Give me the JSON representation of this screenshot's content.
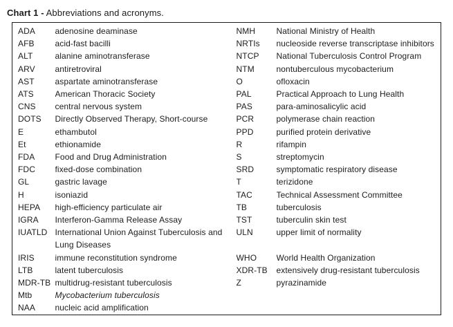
{
  "title": {
    "label": "Chart 1 -",
    "caption": "Abbreviations and acronyms."
  },
  "table": {
    "rows": [
      {
        "a1": "ADA",
        "d1": "adenosine deaminase",
        "a2": "NMH",
        "d2": "National Ministry of Health"
      },
      {
        "a1": "AFB",
        "d1": "acid-fast bacilli",
        "a2": "NRTIs",
        "d2": "nucleoside reverse transcriptase inhibitors"
      },
      {
        "a1": "ALT",
        "d1": "alanine aminotransferase",
        "a2": "NTCP",
        "d2": "National Tuberculosis Control Program"
      },
      {
        "a1": "ARV",
        "d1": "antiretroviral",
        "a2": "NTM",
        "d2": "nontuberculous mycobacterium"
      },
      {
        "a1": "AST",
        "d1": "aspartate aminotransferase",
        "a2": "O",
        "d2": "ofloxacin"
      },
      {
        "a1": "ATS",
        "d1": "American Thoracic Society",
        "a2": "PAL",
        "d2": "Practical Approach to Lung Health"
      },
      {
        "a1": "CNS",
        "d1": "central nervous system",
        "a2": "PAS",
        "d2": "para-aminosalicylic acid"
      },
      {
        "a1": "DOTS",
        "d1": "Directly Observed Therapy, Short-course",
        "a2": "PCR",
        "d2": "polymerase chain reaction"
      },
      {
        "a1": "E",
        "d1": "ethambutol",
        "a2": "PPD",
        "d2": "purified protein derivative"
      },
      {
        "a1": "Et",
        "d1": "ethionamide",
        "a2": "R",
        "d2": "rifampin"
      },
      {
        "a1": "FDA",
        "d1": "Food and Drug Administration",
        "a2": "S",
        "d2": "streptomycin"
      },
      {
        "a1": "FDC",
        "d1": "fixed-dose combination",
        "a2": "SRD",
        "d2": "symptomatic respiratory disease"
      },
      {
        "a1": "GL",
        "d1": "gastric lavage",
        "a2": "T",
        "d2": "terizidone"
      },
      {
        "a1": "H",
        "d1": "isoniazid",
        "a2": "TAC",
        "d2": "Technical Assessment Committee"
      },
      {
        "a1": "HEPA",
        "d1": "high-efficiency particulate air",
        "a2": "TB",
        "d2": "tuberculosis"
      },
      {
        "a1": "IGRA",
        "d1": "Interferon-Gamma Release Assay",
        "a2": "TST",
        "d2": "tuberculin skin test"
      },
      {
        "a1": "IUATLD",
        "d1": "International Union Against Tuberculosis and Lung Diseases",
        "a2": "ULN",
        "d2": "upper limit of normality"
      },
      {
        "a1": "IRIS",
        "d1": "immune reconstitution syndrome",
        "a2": "WHO",
        "d2": "World Health Organization"
      },
      {
        "a1": "LTB",
        "d1": "latent tuberculosis",
        "a2": "XDR-TB",
        "d2": "extensively drug-resistant tuberculosis"
      },
      {
        "a1": "MDR-TB",
        "d1": "multidrug-resistant tuberculosis",
        "a2": "Z",
        "d2": "pyrazinamide"
      },
      {
        "a1": "Mtb",
        "d1": "Mycobacterium tuberculosis",
        "d1_italic": true,
        "a2": "",
        "d2": ""
      },
      {
        "a1": "NAA",
        "d1": "nucleic acid amplification",
        "a2": "",
        "d2": ""
      }
    ]
  }
}
